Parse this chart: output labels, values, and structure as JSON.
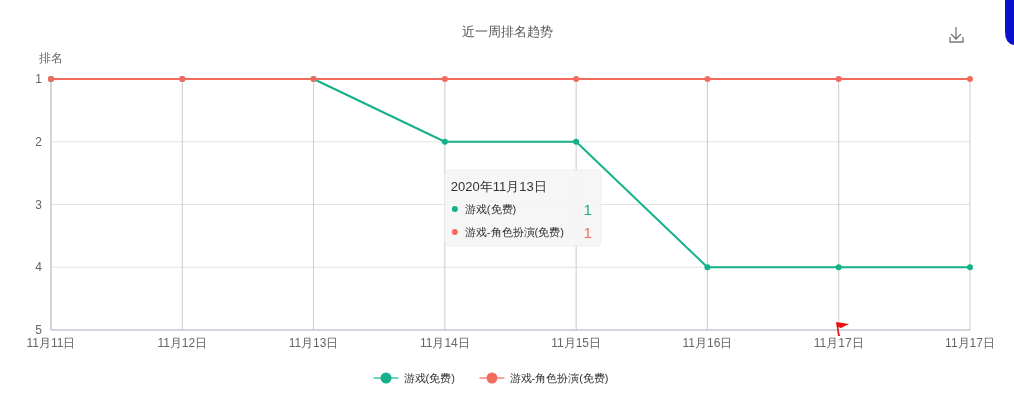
{
  "chart_data": {
    "type": "line",
    "title": "近一周排名趋势",
    "ylabel": "排名",
    "categories": [
      "11月11日",
      "11月12日",
      "11月13日",
      "11月14日",
      "11月15日",
      "11月16日",
      "11月17日",
      "11月17日"
    ],
    "series": [
      {
        "name": "游戏(免费)",
        "color": "#14b18b",
        "values": [
          1,
          1,
          1,
          2,
          2,
          4,
          4,
          4
        ]
      },
      {
        "name": "游戏-角色扮演(免费)",
        "color": "#f36b5d",
        "values": [
          1,
          1,
          1,
          1,
          1,
          1,
          1,
          1
        ]
      }
    ],
    "ylim": [
      5,
      1
    ],
    "yticks": [
      1,
      2,
      3,
      4,
      5
    ],
    "grid": true,
    "legend": "bottom",
    "marker": "circle",
    "line_style": "solid",
    "annotations": [
      "2020年11月13日",
      "1",
      "1"
    ]
  }
}
